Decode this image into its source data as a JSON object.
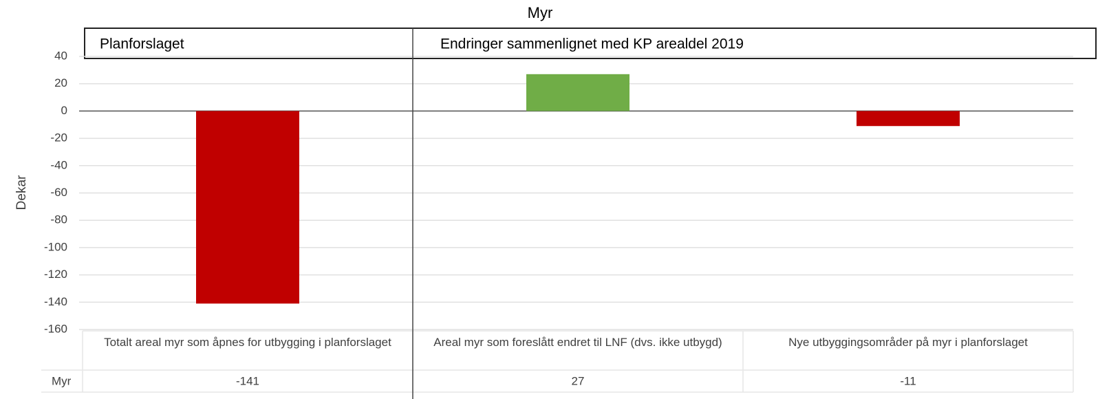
{
  "chart_data": {
    "type": "bar",
    "title": "Myr",
    "sections": [
      "Planforslaget",
      "Endringer sammenlignet med KP arealdel 2019"
    ],
    "y_label": "Dekar",
    "categories": [
      "Totalt areal myr som åpnes for utbygging i planforslaget",
      "Areal myr som foreslått endret til LNF (dvs. ikke utbygd)",
      "Nye utbyggingsområder på myr i planforslaget"
    ],
    "series": [
      {
        "name": "Myr",
        "colors": [
          "#c00000",
          "#70ad47",
          "#c00000"
        ],
        "values": [
          -141,
          27,
          -11
        ]
      }
    ],
    "ylim": [
      -160,
      40
    ],
    "yticks": [
      -160,
      -140,
      -120,
      -100,
      -80,
      -60,
      -40,
      -20,
      0,
      20,
      40
    ],
    "grid": true
  }
}
